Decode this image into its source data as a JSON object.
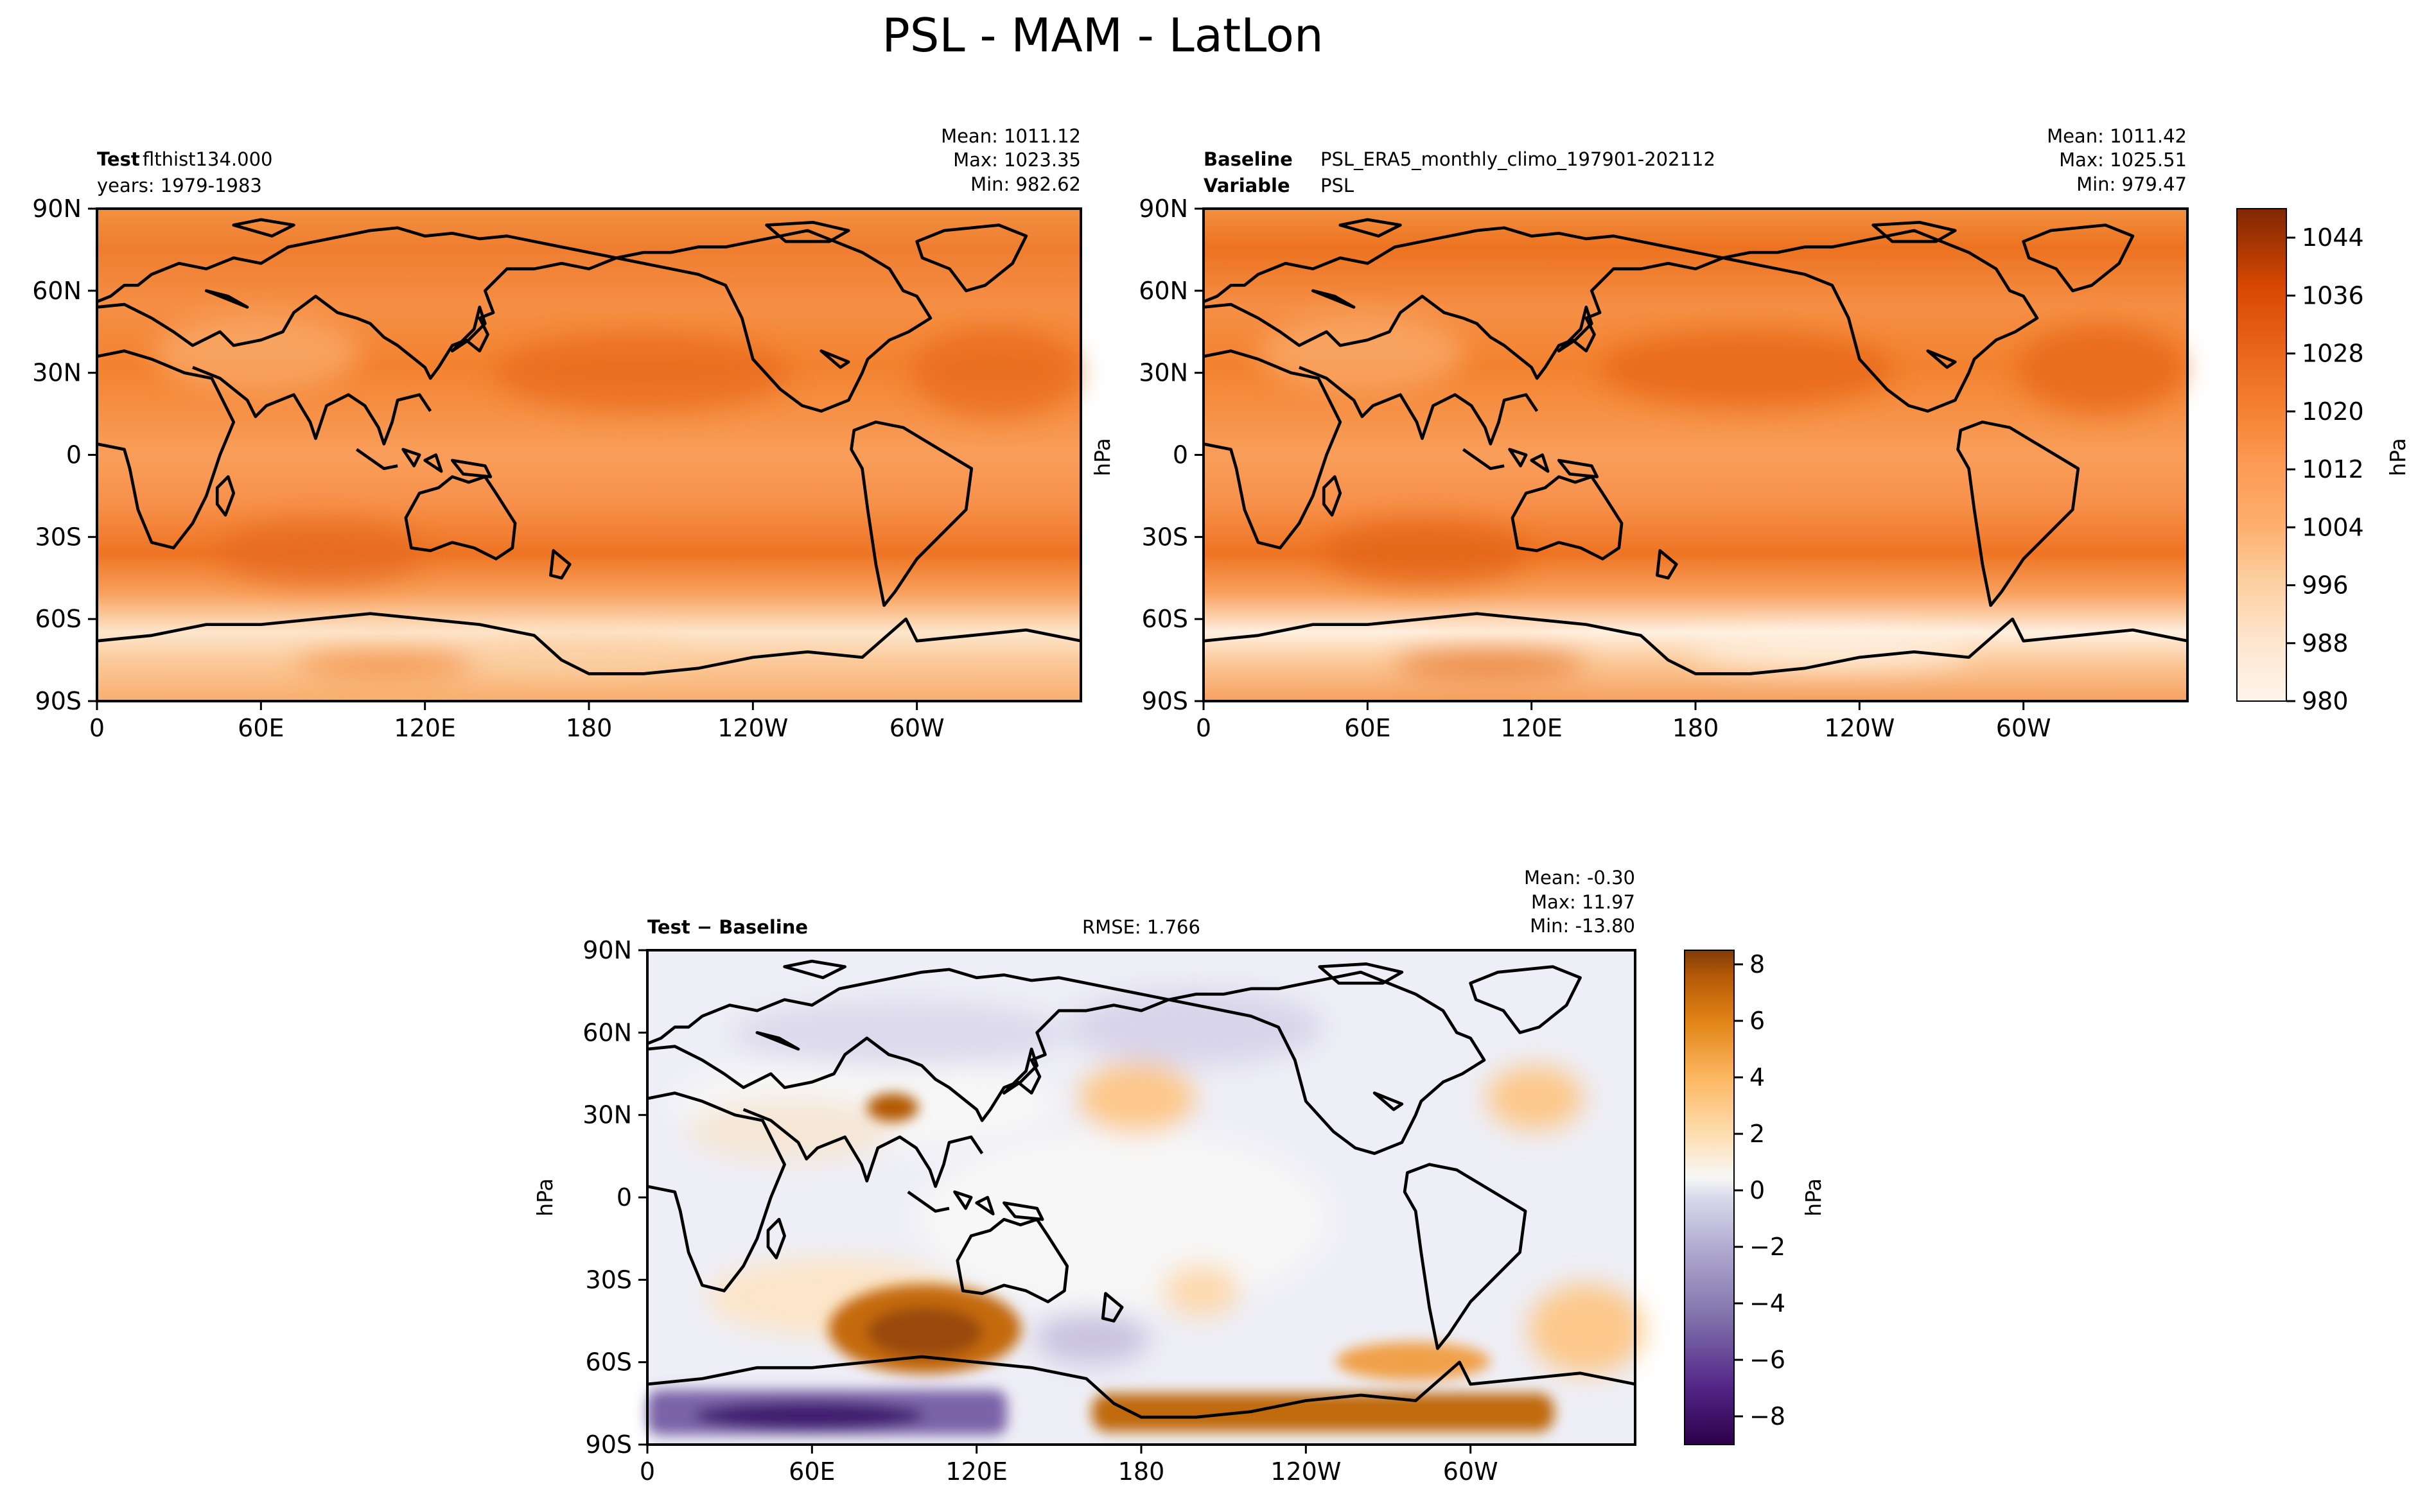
{
  "figure": {
    "title": "PSL - MAM - LatLon"
  },
  "colors": {
    "orange_scale": [
      "#fff5eb",
      "#feecd9",
      "#fee1c4",
      "#fdd2a7",
      "#fdc18a",
      "#fdad6e",
      "#fd9a55",
      "#fd8b43",
      "#f67b35",
      "#ef6c27",
      "#e55e1a",
      "#db4f0f",
      "#cb4503",
      "#b83c02",
      "#a23503",
      "#8b2f04",
      "#7f2704"
    ],
    "diff_low": "#2d004b",
    "diff_mid": "#f7f7f7",
    "diff_high": "#7f3b08",
    "coastline": "#000000"
  },
  "chart_data": [
    {
      "type": "heatmap",
      "panel": "test",
      "header_bold": "Test",
      "header_text": "flthist134.000",
      "subheader_text": "years: 1979-1983",
      "stats": {
        "mean": "Mean: 1011.12",
        "max": "Max: 1023.35",
        "min": "Min: 982.62"
      },
      "xlabel": "",
      "ylabel": "",
      "xticks": [
        "0",
        "60E",
        "120E",
        "180",
        "120W",
        "60W"
      ],
      "yticks": [
        "90N",
        "60N",
        "30N",
        "0",
        "30S",
        "60S",
        "90S"
      ],
      "xlim": [
        0,
        360
      ],
      "ylim": [
        -90,
        90
      ]
    },
    {
      "type": "heatmap",
      "panel": "baseline",
      "header_bold": "Baseline",
      "header_text": "PSL_ERA5_monthly_climo_197901-202112",
      "subheader_bold": "Variable",
      "subheader_text": "PSL",
      "stats": {
        "mean": "Mean: 1011.42",
        "max": "Max: 1025.51",
        "min": "Min: 979.47"
      },
      "xticks": [
        "0",
        "60E",
        "120E",
        "180",
        "120W",
        "60W"
      ],
      "yticks": [
        "90N",
        "60N",
        "30N",
        "0",
        "30S",
        "60S",
        "90S"
      ],
      "ylabel_left": "hPa",
      "xlim": [
        0,
        360
      ],
      "ylim": [
        -90,
        90
      ],
      "colorbar": {
        "label": "hPa",
        "vmin": 980,
        "vmax": 1048,
        "ticks": [
          980,
          988,
          996,
          1004,
          1012,
          1020,
          1028,
          1036,
          1044
        ],
        "tick_labels": [
          "980",
          "988",
          "996",
          "1004",
          "1012",
          "1020",
          "1028",
          "1036",
          "1044"
        ]
      }
    },
    {
      "type": "heatmap",
      "panel": "difference",
      "header_bold": "Test − Baseline",
      "rmse": "RMSE: 1.766",
      "stats": {
        "mean": "Mean: -0.30",
        "max": "Max: 11.97",
        "min": "Min: -13.80"
      },
      "ylabel": "hPa",
      "xticks": [
        "0",
        "60E",
        "120E",
        "180",
        "120W",
        "60W"
      ],
      "yticks": [
        "90N",
        "60N",
        "30N",
        "0",
        "30S",
        "60S",
        "90S"
      ],
      "xlim": [
        0,
        360
      ],
      "ylim": [
        -90,
        90
      ],
      "colorbar": {
        "label": "hPa",
        "vmin": -9,
        "vmax": 8.5,
        "ticks": [
          -8,
          -6,
          -4,
          -2,
          0,
          2,
          4,
          6,
          8
        ],
        "tick_labels": [
          "−8",
          "−6",
          "−4",
          "−2",
          "0",
          "2",
          "4",
          "6",
          "8"
        ]
      }
    }
  ]
}
